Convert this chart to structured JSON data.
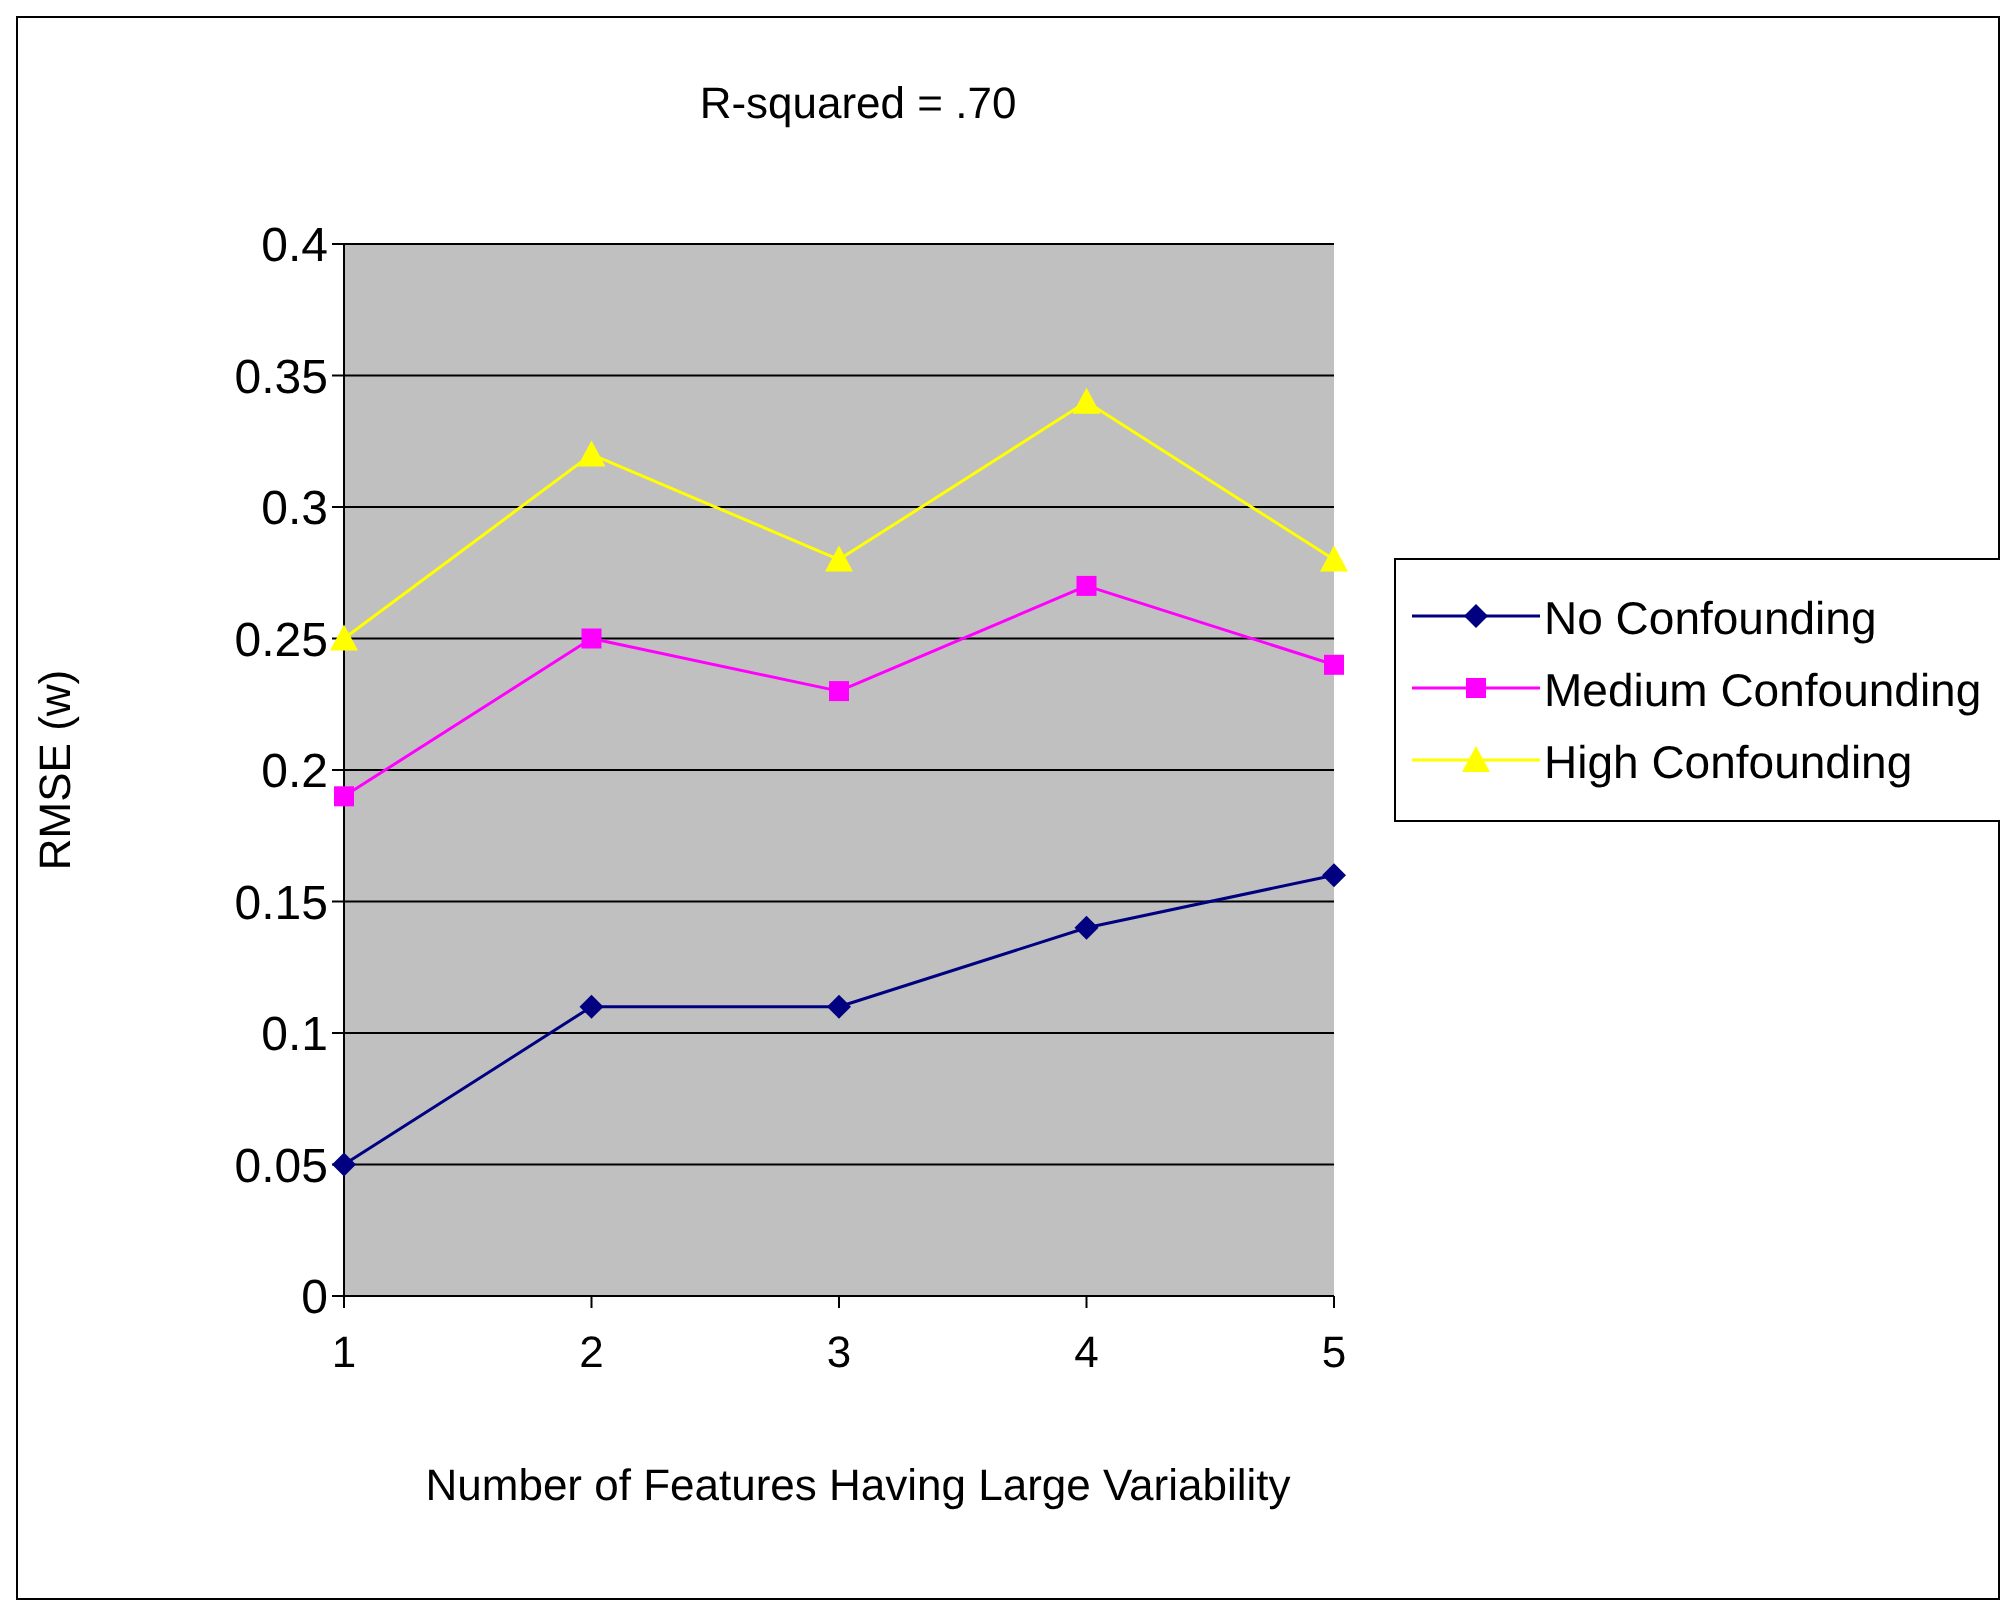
{
  "chart_data": {
    "type": "line",
    "title": "R-squared = .70",
    "xlabel": "Number of Features Having Large Variability",
    "ylabel": "RMSE (w)",
    "categories": [
      "1",
      "2",
      "3",
      "4",
      "5"
    ],
    "series": [
      {
        "name": "No Confounding",
        "color": "#000080",
        "marker": "diamond",
        "values": [
          0.05,
          0.11,
          0.11,
          0.14,
          0.16
        ]
      },
      {
        "name": "Medium Confounding",
        "color": "#ff00ff",
        "marker": "square",
        "values": [
          0.19,
          0.25,
          0.23,
          0.27,
          0.24
        ]
      },
      {
        "name": "High Confounding",
        "color": "#ffff00",
        "marker": "triangle",
        "values": [
          0.25,
          0.32,
          0.28,
          0.34,
          0.28
        ]
      }
    ],
    "ylim": [
      0,
      0.4
    ],
    "yticks": [
      0,
      0.05,
      0.1,
      0.15,
      0.2,
      0.25,
      0.3,
      0.35,
      0.4
    ],
    "grid": "y",
    "legend": "right"
  }
}
